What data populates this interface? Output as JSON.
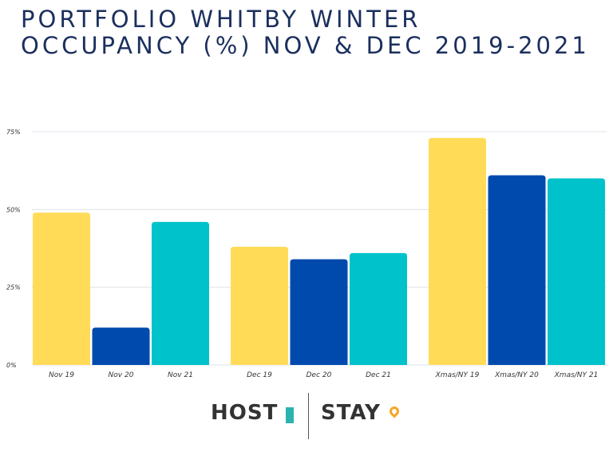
{
  "chart_data": {
    "type": "bar",
    "title": "PORTFOLIO WHITBY WINTER OCCUPANCY (%) NOV & DEC 2019-2021",
    "categories": [
      "Nov 19",
      "Nov 20",
      "Nov 21",
      "Dec 19",
      "Dec 20",
      "Dec 21",
      "Xmas/NY 19",
      "Xmas/NY 20",
      "Xmas/NY 21"
    ],
    "values": [
      49,
      12,
      46,
      38,
      34,
      36,
      73,
      61,
      60
    ],
    "colors": [
      "#ffdb58",
      "#004aad",
      "#00c2cb",
      "#ffdb58",
      "#004aad",
      "#00c2cb",
      "#ffdb58",
      "#004aad",
      "#00c2cb"
    ],
    "yticks": [
      0,
      25,
      50,
      75
    ],
    "ytick_labels": [
      "0%",
      "25%",
      "50%",
      "75%"
    ],
    "ylim": [
      0,
      75
    ],
    "xlabel": "",
    "ylabel": "",
    "grid": true,
    "legend": "none"
  },
  "logo": {
    "left": "HOST",
    "right": "STAY"
  }
}
